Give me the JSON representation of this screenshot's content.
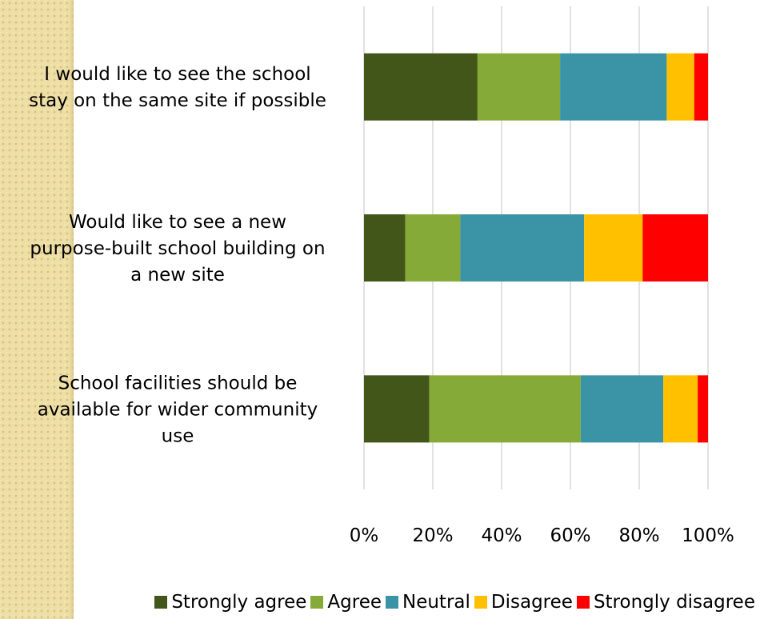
{
  "chart_data": {
    "type": "bar",
    "orientation": "horizontal",
    "stacked": "percent",
    "categories": [
      "I would like to see the school stay on the same site if possible",
      "Would like to see a new purpose-built school building on a new site",
      "School facilities should be available for wider community use"
    ],
    "category_lines": [
      [
        "I would like to see the school",
        "stay on the same site if possible"
      ],
      [
        "Would like to see a new",
        "purpose-built school building on",
        "a new site"
      ],
      [
        "School facilities should be",
        "available for wider community",
        "use"
      ]
    ],
    "series": [
      {
        "name": "Strongly agree",
        "color": "#43561a",
        "values": [
          33,
          12,
          19
        ]
      },
      {
        "name": "Agree",
        "color": "#86aa38",
        "values": [
          24,
          16,
          44
        ]
      },
      {
        "name": "Neutral",
        "color": "#3b93a6",
        "values": [
          31,
          36,
          24
        ]
      },
      {
        "name": "Disagree",
        "color": "#ffc000",
        "values": [
          8,
          17,
          10
        ]
      },
      {
        "name": "Strongly disagree",
        "color": "#ff0000",
        "values": [
          4,
          19,
          3
        ]
      }
    ],
    "xticks": [
      "0%",
      "20%",
      "40%",
      "60%",
      "80%",
      "100%"
    ],
    "xlim": [
      0,
      100
    ],
    "grid": true,
    "legend": "bottom"
  }
}
